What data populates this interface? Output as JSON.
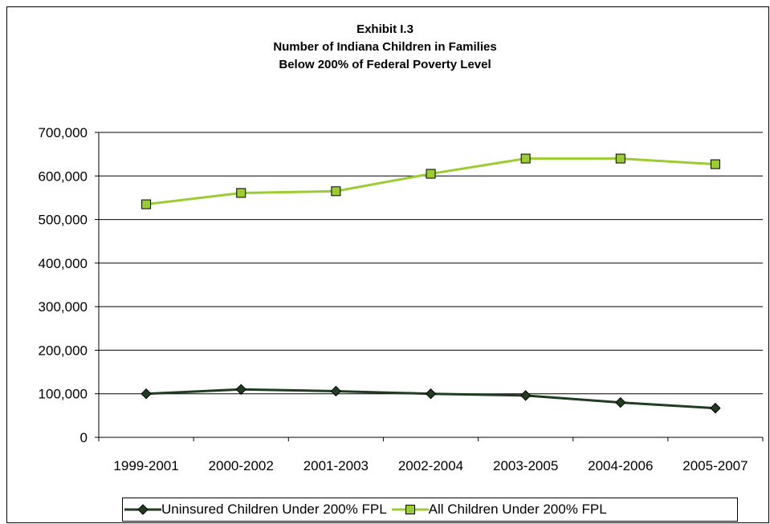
{
  "chart_data": {
    "type": "line",
    "title_lines": [
      "Exhibit I.3",
      "Number of Indiana Children in Families",
      "Below 200% of Federal Poverty Level"
    ],
    "categories": [
      "1999-2001",
      "2000-2002",
      "2001-2003",
      "2002-2004",
      "2003-2005",
      "2004-2006",
      "2005-2007"
    ],
    "y_ticks": [
      "0",
      "100,000",
      "200,000",
      "300,000",
      "400,000",
      "500,000",
      "600,000",
      "700,000"
    ],
    "ylim": [
      0,
      700000
    ],
    "grid": true,
    "legend_position": "bottom",
    "series": [
      {
        "name": "Uninsured Children Under 200% FPL",
        "values": [
          100000,
          110000,
          106000,
          100000,
          96000,
          80000,
          67000
        ],
        "color": "#1f3d1f",
        "marker": "diamond"
      },
      {
        "name": "All Children Under 200% FPL",
        "values": [
          535000,
          561000,
          565000,
          605000,
          640000,
          640000,
          627000
        ],
        "color": "#9acd32",
        "marker": "square"
      }
    ]
  }
}
